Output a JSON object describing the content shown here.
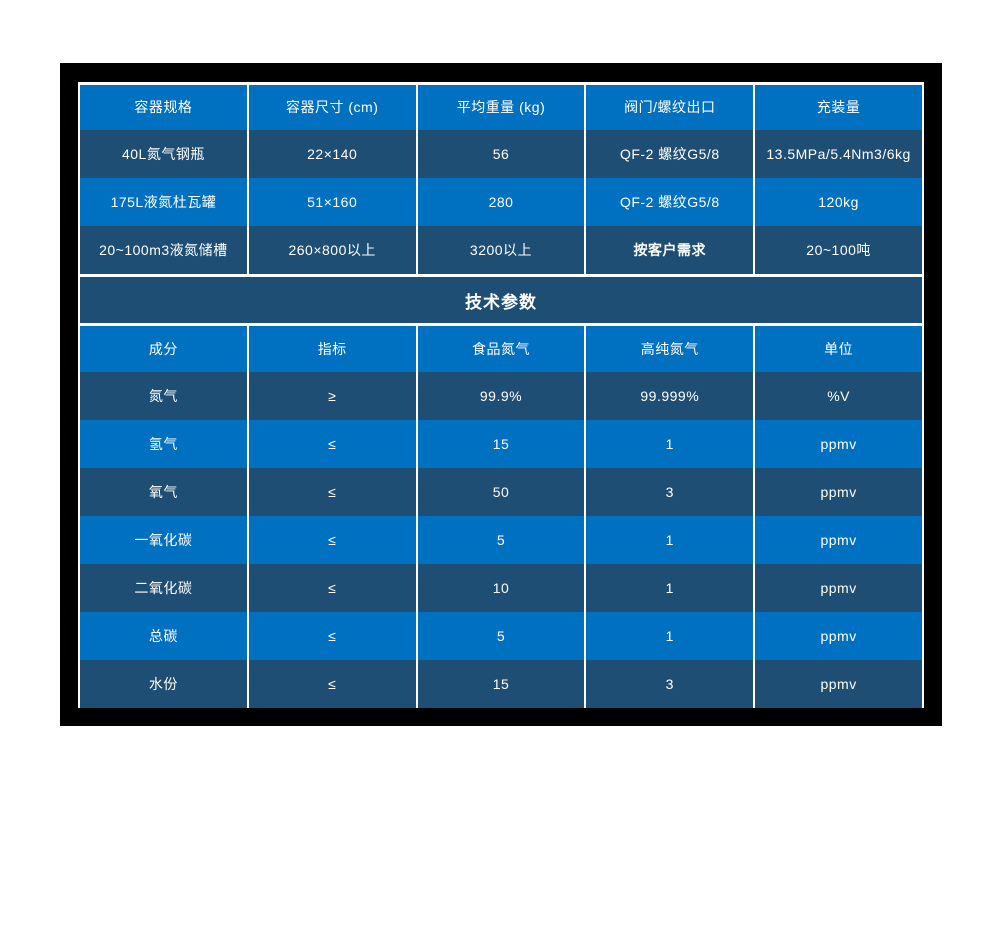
{
  "colors": {
    "accent_blue": "#0070C0",
    "dark_navy": "#1F4E74",
    "divider": "#FFFFFF",
    "frame": "#000000",
    "text": "#FFFFFF"
  },
  "spec_table": {
    "headers": [
      "容器规格",
      "容器尺寸 (cm)",
      "平均重量 (kg)",
      "阀门/螺纹出口",
      "充装量"
    ],
    "rows": [
      [
        "40L氮气钢瓶",
        "22×140",
        "56",
        "QF-2 螺纹G5/8",
        "13.5MPa/5.4Nm3/6kg"
      ],
      [
        "175L液氮杜瓦罐",
        "51×160",
        "280",
        "QF-2 螺纹G5/8",
        "120kg"
      ],
      [
        "20~100m3液氮储槽",
        "260×800以上",
        "3200以上",
        "按客户需求",
        "20~100吨"
      ]
    ],
    "bold_cell": {
      "row": 2,
      "col": 3
    }
  },
  "section_title": "技术参数",
  "params_table": {
    "headers": [
      "成分",
      "指标",
      "食品氮气",
      "高纯氮气",
      "单位"
    ],
    "rows": [
      [
        "氮气",
        "≥",
        "99.9%",
        "99.999%",
        "%V"
      ],
      [
        "氢气",
        "≤",
        "15",
        "1",
        "ppmv"
      ],
      [
        "氧气",
        "≤",
        "50",
        "3",
        "ppmv"
      ],
      [
        "一氧化碳",
        "≤",
        "5",
        "1",
        "ppmv"
      ],
      [
        "二氧化碳",
        "≤",
        "10",
        "1",
        "ppmv"
      ],
      [
        "总碳",
        "≤",
        "5",
        "1",
        "ppmv"
      ],
      [
        "水份",
        "≤",
        "15",
        "3",
        "ppmv"
      ]
    ],
    "bold_cell": null
  }
}
